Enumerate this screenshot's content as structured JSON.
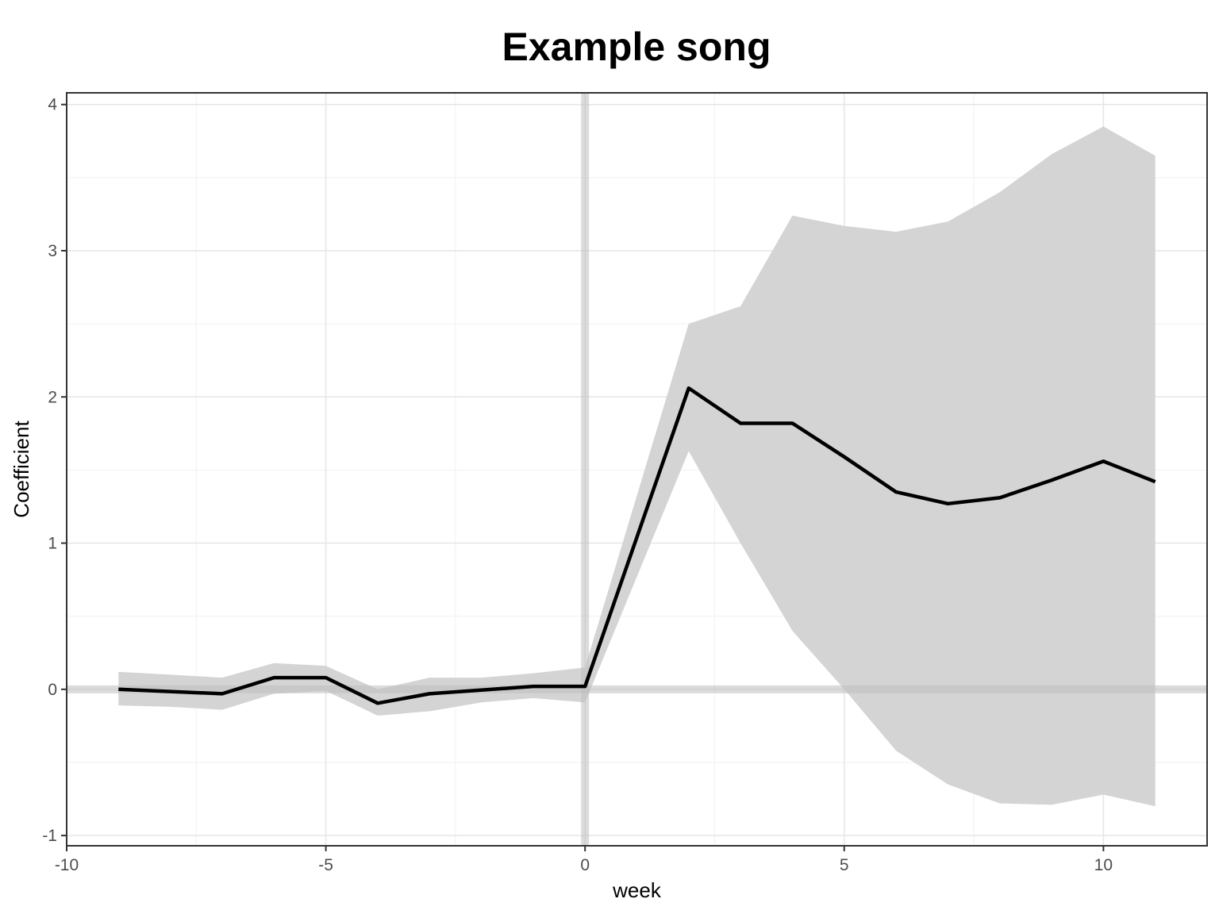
{
  "chart_data": {
    "type": "line",
    "title": "Example song",
    "xlabel": "week",
    "ylabel": "Coefficient",
    "xlim": [
      -10,
      12
    ],
    "ylim": [
      -1,
      4
    ],
    "x_ticks": [
      -10,
      -5,
      0,
      5,
      10
    ],
    "x_tick_labels": [
      "-10",
      "-5",
      "0",
      "5",
      "10"
    ],
    "y_ticks": [
      -1,
      0,
      1,
      2,
      3,
      4
    ],
    "y_tick_labels": [
      "-1",
      "0",
      "1",
      "2",
      "3",
      "4"
    ],
    "grid": true,
    "reference_lines": {
      "x": 0,
      "y": 0
    },
    "series": [
      {
        "x": [
          -9,
          -8,
          -7,
          -6,
          -5,
          -4,
          -3,
          -2,
          -1,
          0,
          2,
          3,
          4,
          5,
          6,
          7,
          8,
          9,
          10,
          11
        ],
        "y": [
          0.0,
          -0.015,
          -0.03,
          0.08,
          0.08,
          -0.095,
          -0.03,
          -0.005,
          0.02,
          0.02,
          2.06,
          1.82,
          1.82,
          1.59,
          1.35,
          1.27,
          1.31,
          1.43,
          1.56,
          1.42
        ],
        "lower": [
          -0.11,
          -0.12,
          -0.14,
          -0.03,
          -0.01,
          -0.18,
          -0.15,
          -0.09,
          -0.06,
          -0.09,
          1.63,
          1.0,
          0.4,
          0.0,
          -0.42,
          -0.65,
          -0.78,
          -0.79,
          -0.72,
          -0.8
        ],
        "upper": [
          0.12,
          0.1,
          0.08,
          0.18,
          0.16,
          0.0,
          0.08,
          0.08,
          0.11,
          0.15,
          2.5,
          2.62,
          3.24,
          3.17,
          3.13,
          3.2,
          3.4,
          3.66,
          3.85,
          3.65
        ]
      }
    ],
    "colors": {
      "line": "#000000",
      "ribbon": "#d4d4d4",
      "reference": "#bebebe",
      "grid_major": "#e6e6e6",
      "grid_minor": "#f1f1f1",
      "panel_border": "#333333"
    }
  }
}
